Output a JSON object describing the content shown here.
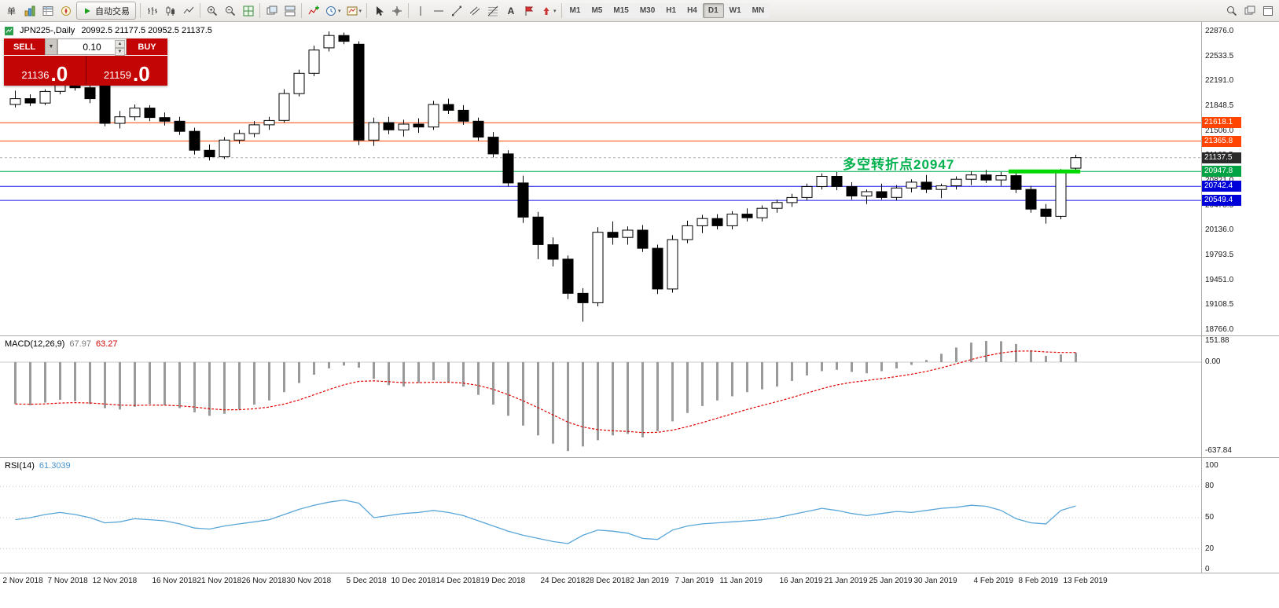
{
  "toolbar": {
    "order_label": "单",
    "autotrade_label": "自动交易",
    "timeframes": [
      "M1",
      "M5",
      "M15",
      "M30",
      "H1",
      "H4",
      "D1",
      "W1",
      "MN"
    ],
    "active_timeframe": "D1"
  },
  "trade_panel": {
    "sell_label": "SELL",
    "buy_label": "BUY",
    "volume": "0.10",
    "sell_price_main": "21136",
    "sell_price_big": ".0",
    "buy_price_main": "21159",
    "buy_price_big": ".0"
  },
  "chart_header": {
    "title": "JPN225-,Daily",
    "ohlc": "20992.5 21177.5 20952.5 21137.5"
  },
  "annotation": {
    "text": "多空转折点20947",
    "color": "#00b14e"
  },
  "price_axis": {
    "labels": [
      "22876.0",
      "22533.5",
      "22191.0",
      "21848.5",
      "21506.0",
      "21163.5",
      "20821.0",
      "20478.5",
      "20136.0",
      "19793.5",
      "19451.0",
      "19108.5",
      "18766.0"
    ]
  },
  "macd": {
    "name": "MACD(12,26,9)",
    "value1": "67.97",
    "value2": "63.27",
    "scale": [
      {
        "v": 151.88,
        "t": "151.88"
      },
      {
        "v": 0,
        "t": "0.00"
      },
      {
        "v": -637.84,
        "t": "-637.84"
      }
    ]
  },
  "rsi": {
    "name": "RSI(14)",
    "value": "61.3039",
    "scale": [
      {
        "v": 100,
        "t": "100"
      },
      {
        "v": 80,
        "t": "80"
      },
      {
        "v": 50,
        "t": "50"
      },
      {
        "v": 20,
        "t": "20"
      },
      {
        "v": 0,
        "t": "0"
      }
    ]
  },
  "date_axis": [
    {
      "t": "2 Nov 2018",
      "i": 0
    },
    {
      "t": "7 Nov 2018",
      "i": 3
    },
    {
      "t": "12 Nov 2018",
      "i": 6
    },
    {
      "t": "16 Nov 2018",
      "i": 10
    },
    {
      "t": "21 Nov 2018",
      "i": 13
    },
    {
      "t": "26 Nov 2018",
      "i": 16
    },
    {
      "t": "30 Nov 2018",
      "i": 19
    },
    {
      "t": "5 Dec 2018",
      "i": 23
    },
    {
      "t": "10 Dec 2018",
      "i": 26
    },
    {
      "t": "14 Dec 2018",
      "i": 29
    },
    {
      "t": "19 Dec 2018",
      "i": 32
    },
    {
      "t": "24 Dec 2018",
      "i": 36
    },
    {
      "t": "28 Dec 2018",
      "i": 39
    },
    {
      "t": "2 Jan 2019",
      "i": 42
    },
    {
      "t": "7 Jan 2019",
      "i": 45
    },
    {
      "t": "11 Jan 2019",
      "i": 48
    },
    {
      "t": "16 Jan 2019",
      "i": 52
    },
    {
      "t": "21 Jan 2019",
      "i": 55
    },
    {
      "t": "25 Jan 2019",
      "i": 58
    },
    {
      "t": "30 Jan 2019",
      "i": 61
    },
    {
      "t": "4 Feb 2019",
      "i": 65
    },
    {
      "t": "8 Feb 2019",
      "i": 68
    },
    {
      "t": "13 Feb 2019",
      "i": 71
    }
  ],
  "chart_data": [
    {
      "type": "candlestick",
      "symbol": "JPN225-",
      "timeframe": "Daily",
      "ylim": [
        18766,
        22876
      ],
      "last": {
        "open": 20992.5,
        "high": 21177.5,
        "low": 20952.5,
        "close": 21137.5
      },
      "hlines": [
        {
          "price": 21618.1,
          "label": "21618.1",
          "color": "#ff4500",
          "tag_color": "#ff4500",
          "style": "solid"
        },
        {
          "price": 21365.8,
          "label": "21365.8",
          "color": "#ff4500",
          "tag_color": "#ff4500",
          "style": "solid"
        },
        {
          "price": 21137.5,
          "label": "21137.5",
          "color": "#b0b0b0",
          "tag_color": "#2b2b2b",
          "style": "dash"
        },
        {
          "price": 20947.8,
          "label": "20947.8",
          "color": "#00b050",
          "tag_color": "#00a344",
          "style": "solid"
        },
        {
          "price": 20742.4,
          "label": "20742.4",
          "color": "#1414e8",
          "tag_color": "#0000d8",
          "style": "solid"
        },
        {
          "price": 20549.4,
          "label": "20549.4",
          "color": "#1414e8",
          "tag_color": "#0000d8",
          "style": "solid"
        }
      ],
      "segment": {
        "price": 20947.8,
        "from_idx": 66.5,
        "to_idx": 71.3,
        "color": "#00d800",
        "width": 5
      },
      "ohlc": [
        [
          21870,
          22060,
          21830,
          21950
        ],
        [
          21950,
          22010,
          21850,
          21890
        ],
        [
          21890,
          22080,
          21860,
          22050
        ],
        [
          22050,
          22190,
          22010,
          22150
        ],
        [
          22150,
          22240,
          22060,
          22100
        ],
        [
          22100,
          22150,
          21890,
          21950
        ],
        [
          22140,
          22170,
          21570,
          21610
        ],
        [
          21610,
          21780,
          21540,
          21700
        ],
        [
          21700,
          21870,
          21650,
          21820
        ],
        [
          21820,
          21860,
          21640,
          21690
        ],
        [
          21690,
          21760,
          21580,
          21640
        ],
        [
          21640,
          21700,
          21450,
          21500
        ],
        [
          21500,
          21550,
          21180,
          21240
        ],
        [
          21240,
          21320,
          21100,
          21150
        ],
        [
          21150,
          21420,
          21120,
          21380
        ],
        [
          21380,
          21520,
          21330,
          21470
        ],
        [
          21470,
          21640,
          21420,
          21590
        ],
        [
          21590,
          21700,
          21520,
          21650
        ],
        [
          21650,
          22080,
          21620,
          22020
        ],
        [
          22020,
          22350,
          21980,
          22300
        ],
        [
          22300,
          22680,
          22260,
          22620
        ],
        [
          22650,
          22876,
          22600,
          22820
        ],
        [
          22820,
          22860,
          22700,
          22740
        ],
        [
          22700,
          22740,
          21310,
          21380
        ],
        [
          21380,
          21690,
          21300,
          21620
        ],
        [
          21620,
          21700,
          21460,
          21520
        ],
        [
          21520,
          21660,
          21430,
          21600
        ],
        [
          21600,
          21680,
          21480,
          21560
        ],
        [
          21560,
          21920,
          21520,
          21870
        ],
        [
          21870,
          21950,
          21740,
          21790
        ],
        [
          21790,
          21860,
          21590,
          21640
        ],
        [
          21640,
          21690,
          21370,
          21420
        ],
        [
          21420,
          21490,
          21140,
          21190
        ],
        [
          21190,
          21240,
          20740,
          20790
        ],
        [
          20790,
          20890,
          20240,
          20320
        ],
        [
          20320,
          20390,
          19740,
          19940
        ],
        [
          19940,
          20040,
          19640,
          19740
        ],
        [
          19740,
          19790,
          19190,
          19270
        ],
        [
          19270,
          19340,
          18880,
          19140
        ],
        [
          19140,
          20180,
          19090,
          20110
        ],
        [
          20110,
          20260,
          19940,
          20040
        ],
        [
          20040,
          20190,
          19940,
          20140
        ],
        [
          20140,
          20210,
          19840,
          19890
        ],
        [
          19890,
          19940,
          19260,
          19330
        ],
        [
          19330,
          20070,
          19280,
          20010
        ],
        [
          20010,
          20270,
          19960,
          20200
        ],
        [
          20200,
          20350,
          20100,
          20300
        ],
        [
          20300,
          20360,
          20150,
          20200
        ],
        [
          20200,
          20400,
          20150,
          20360
        ],
        [
          20360,
          20440,
          20260,
          20310
        ],
        [
          20310,
          20480,
          20260,
          20440
        ],
        [
          20440,
          20560,
          20380,
          20520
        ],
        [
          20520,
          20640,
          20460,
          20590
        ],
        [
          20590,
          20780,
          20550,
          20740
        ],
        [
          20740,
          20920,
          20700,
          20880
        ],
        [
          20880,
          20940,
          20690,
          20740
        ],
        [
          20740,
          20800,
          20560,
          20610
        ],
        [
          20610,
          20700,
          20500,
          20670
        ],
        [
          20670,
          20780,
          20560,
          20590
        ],
        [
          20590,
          20760,
          20550,
          20720
        ],
        [
          20720,
          20840,
          20660,
          20800
        ],
        [
          20800,
          20900,
          20650,
          20700
        ],
        [
          20700,
          20780,
          20580,
          20750
        ],
        [
          20750,
          20880,
          20700,
          20840
        ],
        [
          20840,
          20950,
          20760,
          20900
        ],
        [
          20900,
          20970,
          20790,
          20830
        ],
        [
          20830,
          20940,
          20750,
          20890
        ],
        [
          20890,
          20950,
          20650,
          20700
        ],
        [
          20700,
          20750,
          20380,
          20430
        ],
        [
          20430,
          20500,
          20230,
          20330
        ],
        [
          20330,
          20980,
          20290,
          20940
        ],
        [
          20992.5,
          21177.5,
          20952.5,
          21137.5
        ]
      ]
    },
    {
      "type": "bar",
      "name": "MACD(12,26,9)",
      "signal_ema": 9,
      "ylim": [
        -637.84,
        151.88
      ],
      "values": [
        -300,
        -310,
        -290,
        -270,
        -280,
        -300,
        -330,
        -340,
        -320,
        -300,
        -310,
        -330,
        -360,
        -385,
        -370,
        -340,
        -305,
        -275,
        -215,
        -150,
        -90,
        -45,
        -25,
        -40,
        -120,
        -165,
        -175,
        -150,
        -130,
        -145,
        -175,
        -235,
        -305,
        -385,
        -455,
        -525,
        -585,
        -637,
        -605,
        -560,
        -525,
        -515,
        -540,
        -495,
        -425,
        -365,
        -315,
        -275,
        -245,
        -215,
        -195,
        -175,
        -135,
        -95,
        -65,
        -55,
        -70,
        -80,
        -65,
        -45,
        -20,
        15,
        60,
        105,
        140,
        152,
        150,
        130,
        85,
        45,
        55,
        68
      ]
    },
    {
      "type": "line",
      "name": "RSI(14)",
      "ylim": [
        0,
        100
      ],
      "levels": [
        80,
        50,
        20
      ],
      "values": [
        48,
        50,
        53,
        55,
        53,
        50,
        45,
        46,
        49,
        48,
        47,
        44,
        40,
        39,
        42,
        44,
        46,
        48,
        53,
        58,
        62,
        65,
        67,
        64,
        50,
        52,
        54,
        55,
        57,
        55,
        52,
        47,
        42,
        37,
        33,
        30,
        27,
        25,
        33,
        38,
        37,
        35,
        30,
        29,
        38,
        42,
        44,
        45,
        46,
        47,
        48,
        50,
        53,
        56,
        59,
        57,
        54,
        52,
        54,
        56,
        55,
        57,
        59,
        60,
        62,
        61,
        57,
        49,
        45,
        44,
        57,
        61.3
      ]
    }
  ]
}
